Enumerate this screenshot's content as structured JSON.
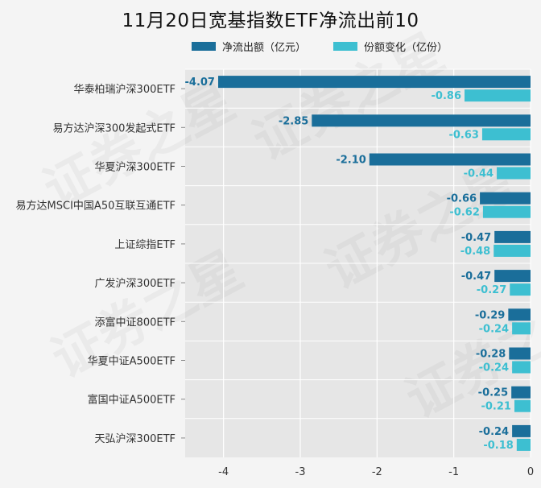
{
  "chart_data": {
    "type": "bar",
    "orientation": "horizontal",
    "title": "11月20日宽基指数ETF净流出前10",
    "categories": [
      "华泰柏瑞沪深300ETF",
      "易方达沪深300发起式ETF",
      "华夏沪深300ETF",
      "易方达MSCI中国A50互联互通ETF",
      "上证综指ETF",
      "广发沪深300ETF",
      "添富中证800ETF",
      "华夏中证A500ETF",
      "富国中证A500ETF",
      "天弘沪深300ETF"
    ],
    "series": [
      {
        "name": "净流出额（亿元）",
        "color": "#1a6e9a",
        "values": [
          -4.07,
          -2.85,
          -2.1,
          -0.66,
          -0.47,
          -0.47,
          -0.29,
          -0.28,
          -0.25,
          -0.24
        ],
        "labels": [
          "-4.07",
          "-2.85",
          "-2.10",
          "-0.66",
          "-0.47",
          "-0.47",
          "-0.29",
          "-0.28",
          "-0.25",
          "-0.24"
        ]
      },
      {
        "name": "份额变化（亿份）",
        "color": "#3dbfd1",
        "values": [
          -0.86,
          -0.63,
          -0.44,
          -0.62,
          -0.48,
          -0.27,
          -0.24,
          -0.24,
          -0.21,
          -0.18
        ],
        "labels": [
          "-0.86",
          "-0.63",
          "-0.44",
          "-0.62",
          "-0.48",
          "-0.27",
          "-0.24",
          "-0.24",
          "-0.21",
          "-0.18"
        ]
      }
    ],
    "xlim": [
      -4.5,
      0
    ],
    "xticks": [
      -4,
      -3,
      -2,
      -1,
      0
    ],
    "xtick_labels": [
      "-4",
      "-3",
      "-2",
      "-1",
      "0"
    ],
    "grid": true,
    "legend_position": "top",
    "watermark": "证券之星"
  }
}
